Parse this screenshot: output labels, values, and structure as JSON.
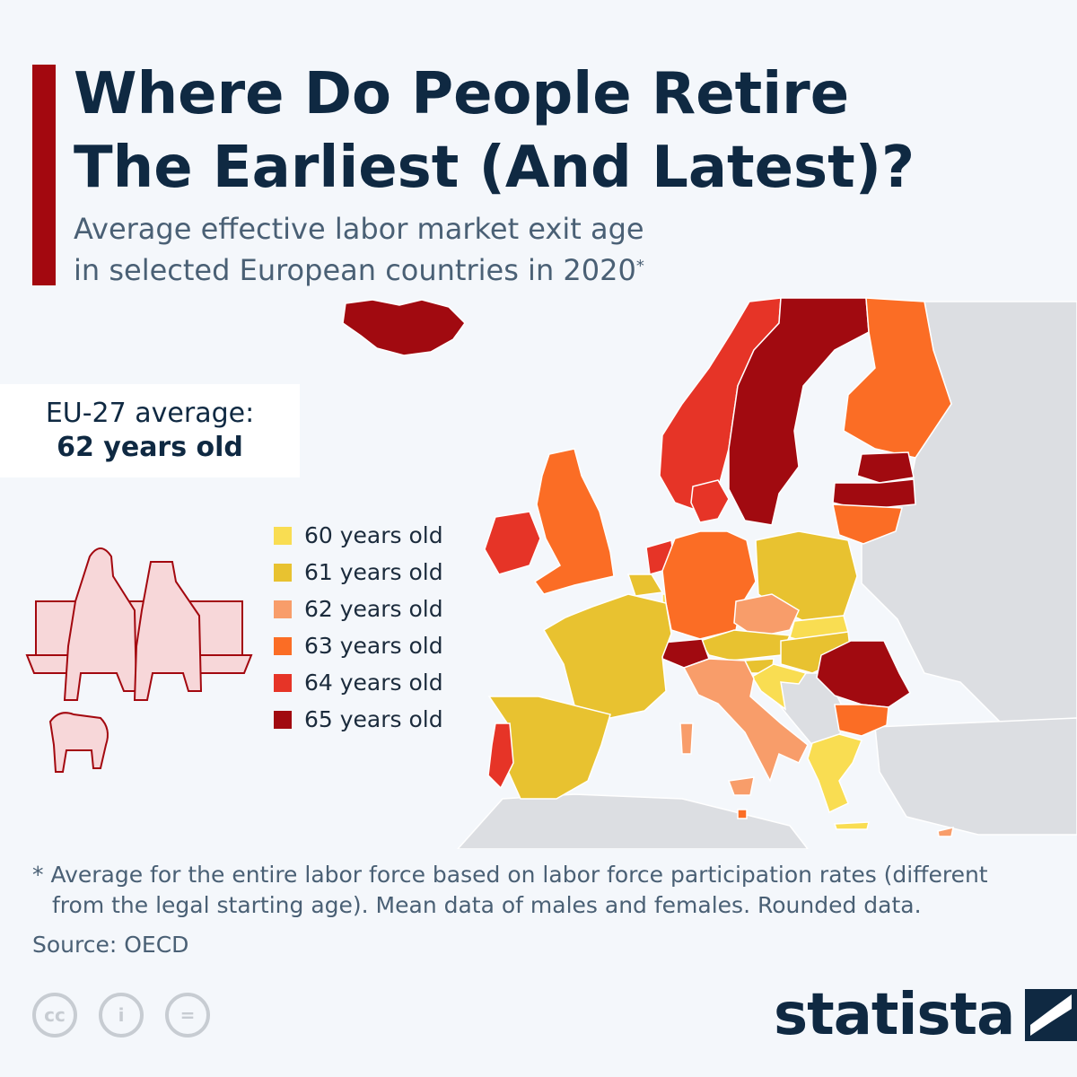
{
  "header": {
    "title": "Where Do People Retire\nThe Earliest (And Latest)?",
    "subtitle": "Average effective labor market exit age\nin selected European countries in 2020",
    "subtitle_marker": "*"
  },
  "average": {
    "label": "EU-27 average:",
    "value": "62 years old"
  },
  "legend": [
    {
      "label": "60 years old",
      "color": "#f9dd52"
    },
    {
      "label": "61 years old",
      "color": "#e8c230"
    },
    {
      "label": "62 years old",
      "color": "#f89d6a"
    },
    {
      "label": "63 years old",
      "color": "#fb6d25"
    },
    {
      "label": "64 years old",
      "color": "#e63427"
    },
    {
      "label": "65 years old",
      "color": "#a10a10"
    }
  ],
  "map": {
    "colors": {
      "non_selected": "#dcdee2",
      "water": "#f4f7fb",
      "border": "#ffffff"
    },
    "countries": {
      "Iceland": 65,
      "Norway": 64,
      "Sweden": 65,
      "Finland": 63,
      "Estonia": 65,
      "Latvia": 65,
      "Lithuania": 63,
      "Denmark": 64,
      "United Kingdom": 63,
      "Ireland": 64,
      "Netherlands": 64,
      "Belgium": 61,
      "Luxembourg": 60,
      "Germany": 63,
      "Poland": 61,
      "Czech Republic": 62,
      "Slovakia": 60,
      "Austria": 61,
      "Hungary": 61,
      "Slovenia": 61,
      "Croatia": 60,
      "Switzerland": 65,
      "France": 61,
      "Italy": 62,
      "Spain": 61,
      "Portugal": 64,
      "Romania": 65,
      "Bulgaria": 63,
      "Greece": 60,
      "Cyprus": 62,
      "Malta": 63
    },
    "illustration": "retirees-on-bench-with-dog"
  },
  "footnote": {
    "line1": "* Average for the entire labor force based on labor force participation rates (different",
    "line2": "from the legal starting age). Mean data of males and females. Rounded data."
  },
  "source": "Source: OECD",
  "license_icons": [
    {
      "name": "cc-icon",
      "glyph": "cc"
    },
    {
      "name": "attribution-icon",
      "glyph": "i"
    },
    {
      "name": "no-derivatives-icon",
      "glyph": "="
    }
  ],
  "brand": {
    "name": "statista"
  }
}
